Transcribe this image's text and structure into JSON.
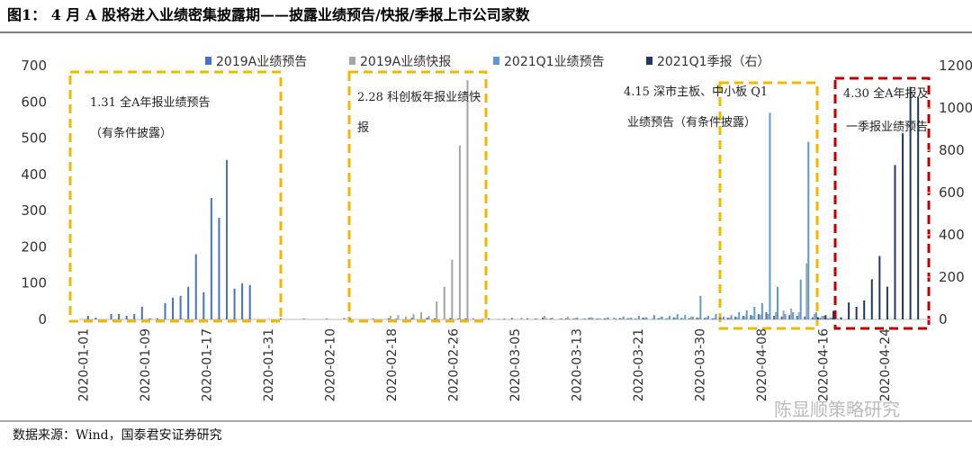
{
  "chart_data": {
    "type": "bar",
    "title": "图1： 4 月 A 股将进入业绩密集披露期——披露业绩预告/快报/季报上市公司家数",
    "source": "数据来源：Wind，国泰君安证券研究",
    "watermark": "陈显顺策略研究",
    "annotations": [
      "1.31 全A年报业绩预告",
      "（有条件披露）",
      "2.28 科创板年报业绩快",
      "报",
      "4.15 深市主板、中小板 Q1",
      "业绩预告（有条件披露）",
      "4.30 全A年报及",
      "一季报业绩预告"
    ],
    "categories": [
      "2020-01-01",
      null,
      null,
      null,
      null,
      null,
      null,
      null,
      "2020-01-09",
      null,
      null,
      null,
      null,
      null,
      null,
      null,
      "2020-01-17",
      null,
      null,
      null,
      null,
      null,
      null,
      null,
      "2020-01-31",
      null,
      null,
      null,
      null,
      null,
      null,
      null,
      "2020-02-10",
      null,
      null,
      null,
      null,
      null,
      null,
      null,
      "2020-02-18",
      null,
      null,
      null,
      null,
      null,
      null,
      null,
      "2020-02-26",
      null,
      null,
      null,
      null,
      null,
      null,
      null,
      "2020-03-05",
      null,
      null,
      null,
      null,
      null,
      null,
      null,
      "2020-03-13",
      null,
      null,
      null,
      null,
      null,
      null,
      null,
      "2020-03-21",
      null,
      null,
      null,
      null,
      null,
      null,
      null,
      "2020-03-30",
      null,
      null,
      null,
      null,
      null,
      null,
      null,
      "2020-04-08",
      null,
      null,
      null,
      null,
      null,
      null,
      null,
      "2020-04-16",
      null,
      null,
      null,
      null,
      null,
      null,
      null,
      "2020-04-24",
      null,
      null,
      null,
      null,
      null
    ],
    "ylim": [
      0,
      700
    ],
    "yticks": [
      0,
      100,
      200,
      300,
      400,
      500,
      600,
      700
    ],
    "y2lim": [
      0,
      1200
    ],
    "y2ticks": [
      0,
      200,
      400,
      600,
      800,
      1000,
      1200
    ],
    "series": [
      {
        "name": "2019A业绩预告",
        "color": "#4472c4",
        "values": [
          0,
          10,
          5,
          0,
          15,
          15,
          10,
          15,
          35,
          3,
          3,
          45,
          60,
          65,
          90,
          180,
          75,
          335,
          280,
          440,
          85,
          100,
          95,
          0,
          0,
          0,
          3,
          0,
          0,
          2,
          0,
          0,
          2,
          0,
          0,
          3,
          0,
          0,
          2,
          0,
          3,
          2,
          0,
          4,
          0,
          5,
          3,
          0,
          4,
          2,
          3,
          2,
          0,
          3,
          0,
          2,
          4,
          0,
          3,
          2,
          5,
          3,
          0,
          3,
          2,
          0,
          4,
          2,
          3,
          0,
          4,
          3,
          2,
          5,
          0,
          3,
          2,
          6,
          4,
          3,
          5,
          4,
          3,
          6,
          5,
          8,
          10,
          12,
          15,
          20,
          10,
          8,
          12,
          10,
          8,
          6,
          4,
          3,
          2,
          0,
          0,
          0,
          0,
          0,
          0,
          0,
          0,
          0,
          0,
          0
        ]
      },
      {
        "name": "2019A业绩快报",
        "color": "#a5a5a5",
        "values": [
          0,
          0,
          0,
          0,
          0,
          0,
          0,
          0,
          0,
          2,
          0,
          0,
          0,
          2,
          0,
          0,
          0,
          0,
          0,
          0,
          0,
          0,
          0,
          0,
          0,
          0,
          0,
          0,
          0,
          0,
          0,
          0,
          0,
          0,
          5,
          0,
          0,
          0,
          0,
          0,
          10,
          12,
          8,
          15,
          20,
          10,
          50,
          90,
          165,
          480,
          660,
          0,
          3,
          0,
          2,
          0,
          0,
          5,
          0,
          3,
          10,
          5,
          3,
          8,
          4,
          2,
          6,
          3,
          4,
          5,
          3,
          4,
          2,
          5,
          3,
          6,
          4,
          5,
          3,
          8,
          5,
          6,
          4,
          3,
          5,
          6,
          8,
          10,
          12,
          15,
          20,
          25,
          30,
          20,
          155,
          15,
          10,
          5,
          3,
          0,
          0,
          0,
          0,
          0,
          0,
          0,
          0,
          0,
          0,
          0
        ]
      },
      {
        "name": "2021Q1业绩预告",
        "color": "#5b9bd5",
        "values": [
          0,
          0,
          0,
          0,
          0,
          0,
          0,
          0,
          0,
          0,
          0,
          0,
          0,
          0,
          0,
          0,
          0,
          0,
          0,
          0,
          0,
          0,
          0,
          0,
          0,
          0,
          0,
          0,
          0,
          0,
          0,
          0,
          0,
          0,
          0,
          0,
          0,
          0,
          0,
          0,
          0,
          0,
          0,
          0,
          0,
          0,
          0,
          0,
          0,
          0,
          0,
          0,
          0,
          0,
          0,
          0,
          0,
          0,
          0,
          0,
          2,
          0,
          3,
          2,
          5,
          3,
          4,
          2,
          6,
          3,
          8,
          5,
          10,
          6,
          12,
          8,
          10,
          15,
          12,
          8,
          65,
          10,
          15,
          8,
          12,
          20,
          25,
          35,
          45,
          570,
          90,
          15,
          20,
          110,
          490,
          20,
          10,
          5,
          0,
          0,
          0,
          0,
          0,
          0,
          0,
          0,
          0,
          0,
          0,
          0
        ]
      },
      {
        "name": "2021Q1季报（右）",
        "color": "#203864",
        "axis": "y2",
        "values": [
          0,
          0,
          0,
          0,
          0,
          0,
          0,
          0,
          0,
          0,
          0,
          0,
          0,
          0,
          0,
          0,
          0,
          0,
          0,
          0,
          0,
          0,
          0,
          0,
          0,
          0,
          0,
          0,
          0,
          0,
          0,
          0,
          0,
          0,
          0,
          0,
          0,
          0,
          0,
          0,
          0,
          0,
          0,
          0,
          0,
          0,
          0,
          0,
          0,
          0,
          0,
          0,
          0,
          0,
          0,
          0,
          0,
          0,
          0,
          0,
          0,
          0,
          0,
          0,
          0,
          0,
          0,
          0,
          0,
          0,
          0,
          0,
          0,
          0,
          0,
          0,
          0,
          0,
          0,
          0,
          0,
          0,
          0,
          0,
          0,
          0,
          0,
          0,
          0,
          0,
          0,
          0,
          0,
          0,
          0,
          10,
          20,
          40,
          10,
          80,
          60,
          90,
          190,
          300,
          155,
          730,
          880,
          1100,
          1050,
          0
        ]
      }
    ]
  }
}
